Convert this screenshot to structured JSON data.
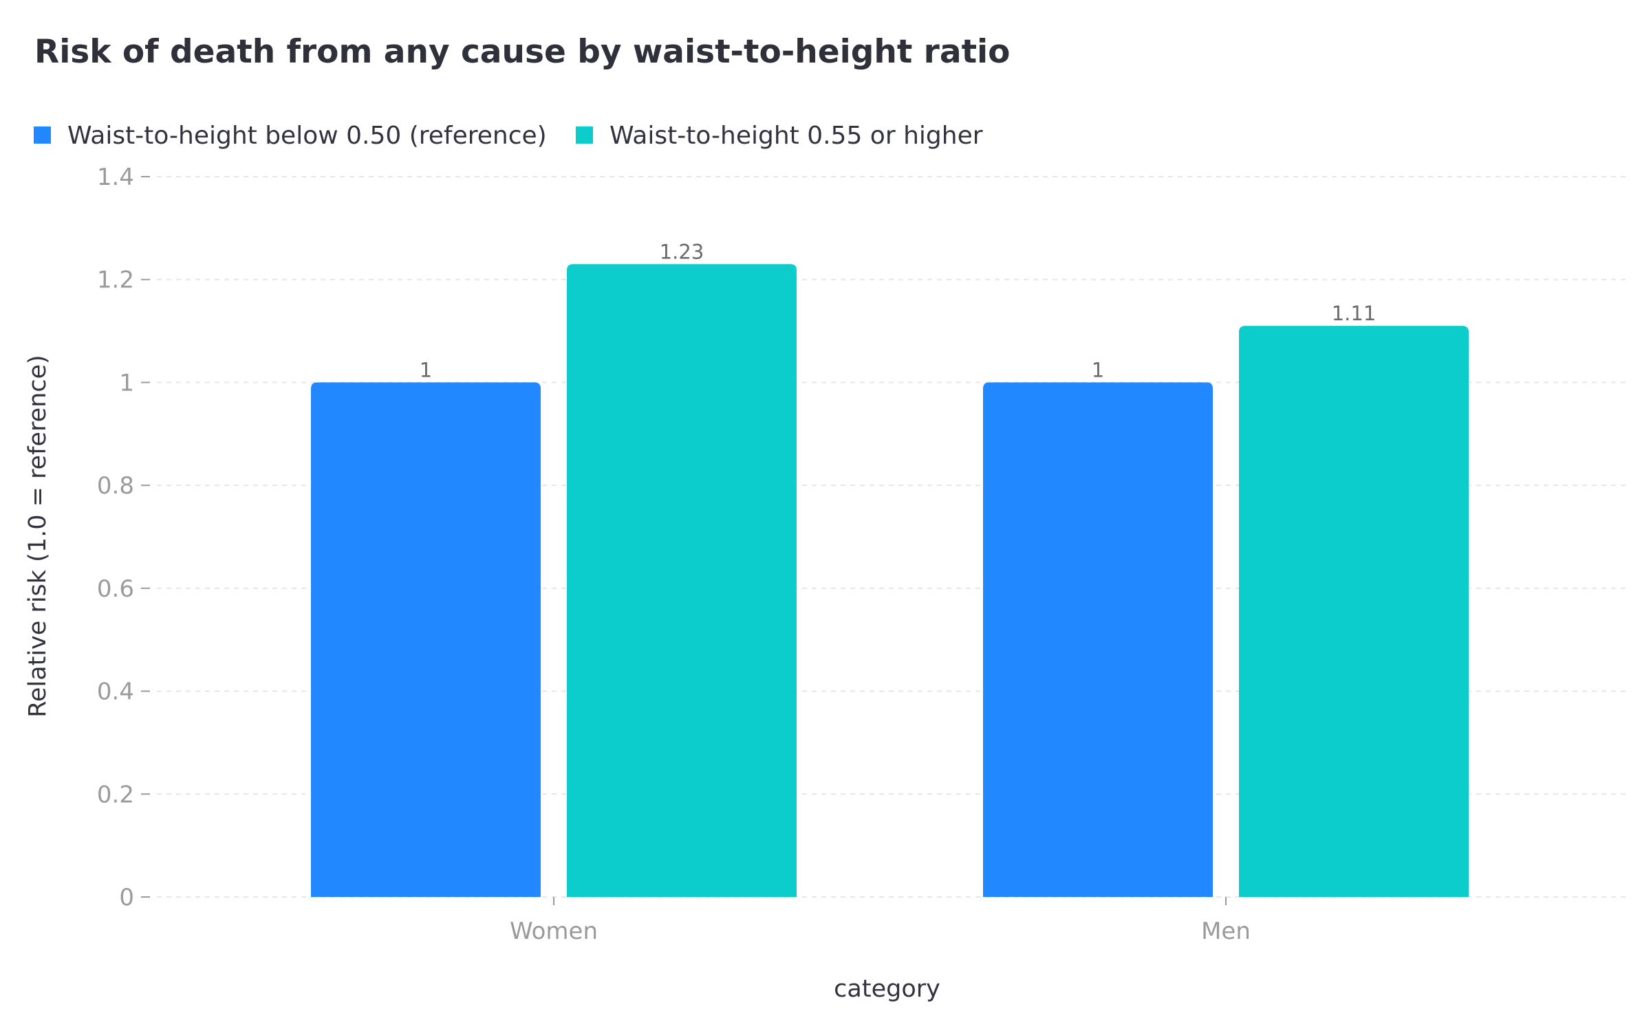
{
  "chart_data": {
    "type": "bar",
    "title": "Risk of death from any cause by waist-to-height ratio",
    "xlabel": "category",
    "ylabel": "Relative risk (1.0 = reference)",
    "categories": [
      "Women",
      "Men"
    ],
    "series": [
      {
        "name": "Waist-to-height below 0.50 (reference)",
        "values": [
          1,
          1
        ],
        "color": "#2188ff"
      },
      {
        "name": "Waist-to-height 0.55 or higher",
        "values": [
          1.23,
          1.11
        ],
        "color": "#0ccdcb"
      }
    ],
    "ylim": [
      0,
      1.4
    ],
    "yticks": [
      "0",
      "0.2",
      "0.4",
      "0.6",
      "0.8",
      "1",
      "1.2",
      "1.4"
    ],
    "grid": true,
    "legend": "top-left"
  }
}
